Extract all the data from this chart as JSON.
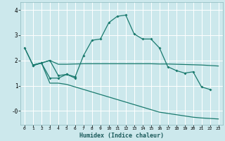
{
  "title": "",
  "xlabel": "Humidex (Indice chaleur)",
  "bg_color": "#cce8ec",
  "grid_color": "#ffffff",
  "line_color": "#1a7a6e",
  "xlim": [
    -0.5,
    23.5
  ],
  "ylim": [
    -0.55,
    4.3
  ],
  "xtick_labels": [
    "0",
    "1",
    "2",
    "3",
    "4",
    "5",
    "6",
    "7",
    "8",
    "9",
    "10",
    "11",
    "12",
    "13",
    "14",
    "15",
    "16",
    "17",
    "18",
    "19",
    "20",
    "21",
    "22",
    "23"
  ],
  "ytick_vals": [
    4,
    3,
    2,
    1,
    0
  ],
  "ytick_labels": [
    "4",
    "3",
    "2",
    "1",
    "-0"
  ],
  "s1_x": [
    0,
    1,
    2,
    3,
    4,
    5,
    6,
    7,
    8,
    9,
    10,
    11,
    12,
    13,
    14,
    15,
    16,
    17,
    18,
    19,
    20,
    21,
    22
  ],
  "s1_y": [
    2.5,
    1.8,
    1.9,
    2.0,
    1.4,
    1.45,
    1.35,
    2.2,
    2.8,
    2.85,
    3.5,
    3.75,
    3.8,
    3.05,
    2.85,
    2.85,
    2.5,
    1.75,
    1.6,
    1.5,
    1.55,
    0.95,
    0.85
  ],
  "s1_markers": true,
  "s2_x": [
    0,
    1,
    2,
    3,
    4,
    5,
    6,
    7,
    8,
    9,
    10,
    11,
    12,
    13,
    14,
    15,
    16,
    17,
    18,
    19,
    20,
    21,
    22,
    23
  ],
  "s2_y": [
    2.5,
    1.82,
    1.9,
    2.0,
    1.85,
    1.85,
    1.86,
    1.87,
    1.87,
    1.87,
    1.87,
    1.87,
    1.87,
    1.87,
    1.87,
    1.87,
    1.86,
    1.86,
    1.85,
    1.84,
    1.83,
    1.82,
    1.8,
    1.78
  ],
  "s2_markers": false,
  "s3_x": [
    1,
    2,
    3,
    4,
    5,
    6
  ],
  "s3_y": [
    1.8,
    1.9,
    1.3,
    1.3,
    1.45,
    1.3
  ],
  "s3_markers": true,
  "s4_x": [
    1,
    2,
    3,
    4,
    5,
    6,
    7,
    8,
    9,
    10,
    11,
    12,
    13,
    14,
    15,
    16,
    17,
    18,
    19,
    20,
    21,
    22,
    23
  ],
  "s4_y": [
    1.82,
    1.9,
    1.1,
    1.1,
    1.05,
    0.95,
    0.85,
    0.75,
    0.65,
    0.55,
    0.45,
    0.35,
    0.25,
    0.15,
    0.05,
    -0.05,
    -0.1,
    -0.15,
    -0.2,
    -0.25,
    -0.28,
    -0.3,
    -0.32
  ],
  "s4_markers": false
}
